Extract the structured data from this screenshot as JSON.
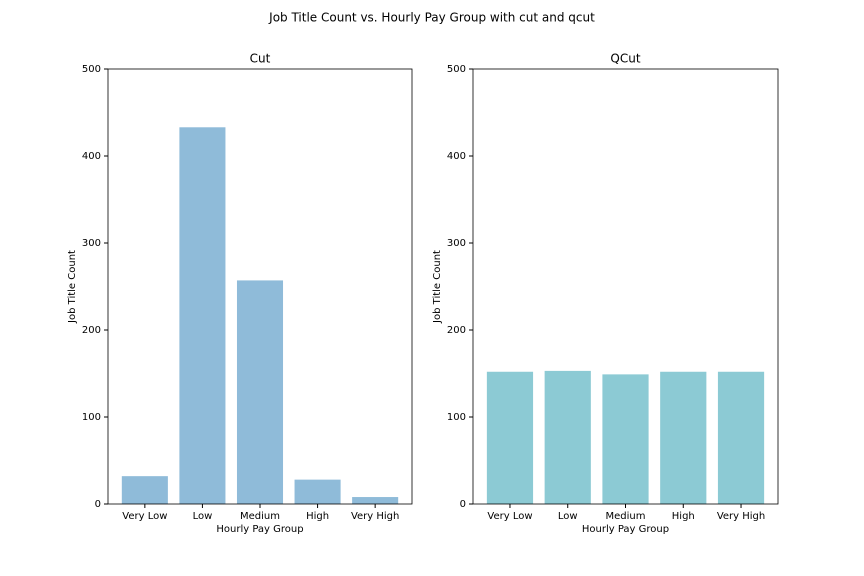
{
  "title": "Job Title Count vs. Hourly Pay Group with cut and qcut",
  "chart_data": [
    {
      "type": "bar",
      "title": "Cut",
      "x_label": "Hourly Pay Group",
      "y_label": "Job Title Count",
      "categories": [
        "Very Low",
        "Low",
        "Medium",
        "High",
        "Very High"
      ],
      "values": [
        32,
        433,
        257,
        28,
        8
      ],
      "color": "#8fbbd9",
      "ylim": [
        0,
        500
      ],
      "yticks": [
        0,
        100,
        200,
        300,
        400,
        500
      ]
    },
    {
      "type": "bar",
      "title": "QCut",
      "x_label": "Hourly Pay Group",
      "y_label": "Job Title Count",
      "categories": [
        "Very Low",
        "Low",
        "Medium",
        "High",
        "Very High"
      ],
      "values": [
        152,
        153,
        149,
        152,
        152
      ],
      "color": "#8ccad4",
      "ylim": [
        0,
        500
      ],
      "yticks": [
        0,
        100,
        200,
        300,
        400,
        500
      ]
    }
  ]
}
